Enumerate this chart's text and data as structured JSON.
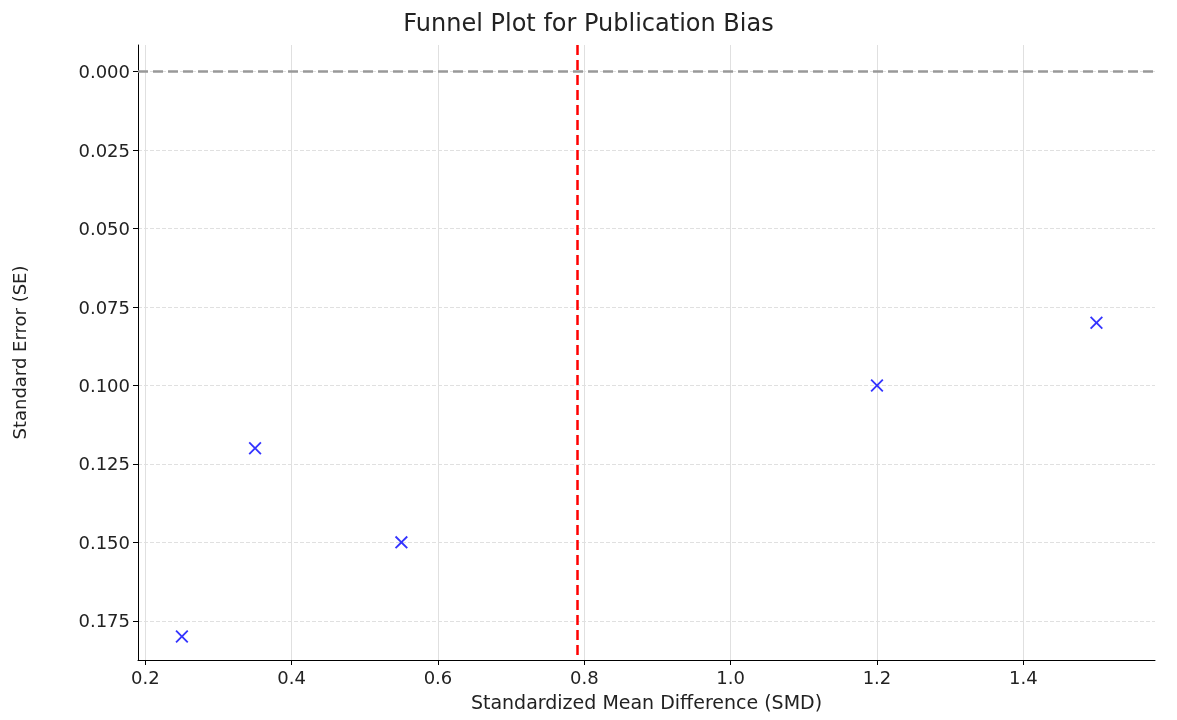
{
  "chart_data": {
    "type": "scatter",
    "title": "Funnel Plot for Publication Bias",
    "xlabel": "Standardized Mean Difference (SMD)",
    "ylabel": "Standard Error (SE)",
    "x": [
      0.25,
      0.35,
      0.55,
      1.2,
      1.5
    ],
    "values": [
      0.18,
      0.12,
      0.15,
      0.1,
      0.08
    ],
    "color": "#0000ff",
    "marker": "cross",
    "xlim": [
      0.19,
      1.58
    ],
    "xticks": [
      0.2,
      0.4,
      0.6,
      0.8,
      {
        "value": 1,
        "label": "1.0"
      },
      1.2,
      1.4
    ],
    "ylim": [
      0.1875,
      -0.0085
    ],
    "yticks": [
      {
        "value": 0,
        "label": "0.000"
      },
      0.025,
      {
        "value": 0.05,
        "label": "0.050"
      },
      0.075,
      {
        "value": 0.1,
        "label": "0.100"
      },
      0.125,
      {
        "value": 0.15,
        "label": "0.150"
      },
      0.175
    ],
    "grid": true,
    "ref_lines": [
      {
        "axis": "x",
        "value": 0.79,
        "color": "#ff0000",
        "line_style": "dashed"
      },
      {
        "axis": "y",
        "value": 0,
        "color": "#999999",
        "line_style": "dashed"
      }
    ]
  }
}
